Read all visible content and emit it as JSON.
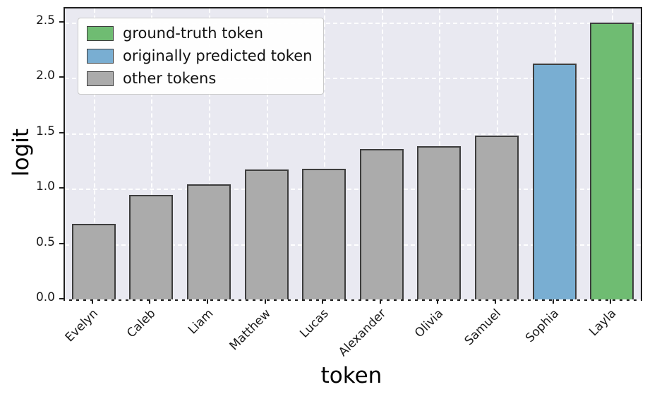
{
  "chart_data": {
    "type": "bar",
    "title": "",
    "xlabel": "token",
    "ylabel": "logit",
    "ylim": [
      0,
      2.625
    ],
    "yticks": [
      0.0,
      0.5,
      1.0,
      1.5,
      2.0,
      2.5
    ],
    "grid": true,
    "grid_style": "dashed-white-on-lavender",
    "legend_position": "upper-left",
    "categories": [
      "Evelyn",
      "Caleb",
      "Liam",
      "Matthew",
      "Lucas",
      "Alexander",
      "Olivia",
      "Samuel",
      "Sophia",
      "Layla"
    ],
    "values": [
      0.68,
      0.94,
      1.04,
      1.17,
      1.18,
      1.36,
      1.38,
      1.48,
      2.13,
      2.5
    ],
    "bar_types": [
      "other",
      "other",
      "other",
      "other",
      "other",
      "other",
      "other",
      "other",
      "predicted",
      "ground_truth"
    ],
    "colors": {
      "ground_truth": "#6fbc72",
      "predicted": "#79aed2",
      "other": "#ababab",
      "edge": "#3d3d3d",
      "plot_background": "#e9e9f1",
      "gridline": "#ffffff"
    },
    "legend": [
      {
        "key": "ground_truth",
        "label": "ground-truth token",
        "color": "#6fbc72"
      },
      {
        "key": "predicted",
        "label": "originally predicted token",
        "color": "#79aed2"
      },
      {
        "key": "other",
        "label": "other tokens",
        "color": "#ababab"
      }
    ]
  }
}
